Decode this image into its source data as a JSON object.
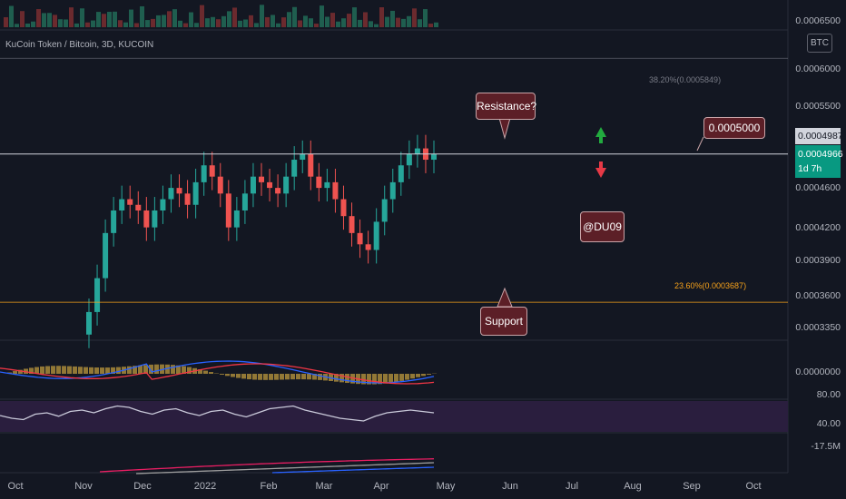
{
  "header": {
    "symbol_line": "KuCoin Token / Bitcoin, 3D, KUCOIN",
    "currency": "BTC"
  },
  "y_axis": {
    "labels": [
      "0.0006000",
      "0.0005500",
      "0.0004600",
      "0.0004200",
      "0.0003900",
      "0.0003600",
      "0.0003350"
    ],
    "top_label": "0.0006500"
  },
  "x_axis": {
    "labels": [
      "Oct",
      "Nov",
      "Dec",
      "2022",
      "Feb",
      "Mar",
      "Apr",
      "May",
      "Jun",
      "Jul",
      "Aug",
      "Sep",
      "Oct"
    ]
  },
  "price_tags": {
    "last_close": "0.0004987",
    "current": "0.0004966",
    "countdown": "1d 7h"
  },
  "annotations": {
    "resistance": "Resistance?",
    "support": "Support",
    "author": "@DU09",
    "level": "0.0005000",
    "fib_38": "38.20%(0.0005849)",
    "fib_23": "23.60%(0.0003687)"
  },
  "indicators": {
    "macd_zero": "0.0000000",
    "rsi_upper": "80.00",
    "rsi_lower": "40.00",
    "volume_osc": "-17.5M"
  },
  "colors": {
    "background": "#131722",
    "up": "#26a69a",
    "down": "#ef5350",
    "resistance_line": "#d1d4dc",
    "fib_38": "#787b86",
    "fib_23": "#f7a21b",
    "macd": "#2962ff",
    "signal": "#f23645",
    "rsi": "#c9c9d9",
    "rsi_band": "#2a1e3e",
    "callout_bg": "#5c1f27"
  },
  "chart_data": {
    "type": "candlestick",
    "title": "KuCoin Token / Bitcoin, 3D, KUCOIN",
    "xlabel": "",
    "ylabel": "BTC",
    "ylim": [
      0.000335,
      0.00061
    ],
    "resistance": 0.0005,
    "fib_levels": [
      {
        "label": "38.20%",
        "value": 0.0005849
      },
      {
        "label": "23.60%",
        "value": 0.0003687
      }
    ],
    "candles": [
      [
        0.00034,
        0.00036
      ],
      [
        0.00036,
        0.00039
      ],
      [
        0.00039,
        0.00043
      ],
      [
        0.00043,
        0.00045
      ],
      [
        0.00045,
        0.00046
      ],
      [
        0.00046,
        0.000455
      ],
      [
        0.000455,
        0.00045
      ],
      [
        0.00045,
        0.000435
      ],
      [
        0.000435,
        0.00045
      ],
      [
        0.00045,
        0.00046
      ],
      [
        0.00046,
        0.00047
      ],
      [
        0.00047,
        0.000465
      ],
      [
        0.000465,
        0.000455
      ],
      [
        0.000455,
        0.000475
      ],
      [
        0.000475,
        0.00049
      ],
      [
        0.00049,
        0.00048
      ],
      [
        0.00048,
        0.000465
      ],
      [
        0.000465,
        0.000435
      ],
      [
        0.000435,
        0.00045
      ],
      [
        0.00045,
        0.000465
      ],
      [
        0.000465,
        0.00048
      ],
      [
        0.00048,
        0.000475
      ],
      [
        0.000475,
        0.00047
      ],
      [
        0.00047,
        0.000465
      ],
      [
        0.000465,
        0.00048
      ],
      [
        0.00048,
        0.000495
      ],
      [
        0.000495,
        0.0005
      ],
      [
        0.0005,
        0.00048
      ],
      [
        0.00048,
        0.00047
      ],
      [
        0.00047,
        0.000475
      ],
      [
        0.000475,
        0.00046
      ],
      [
        0.00046,
        0.000445
      ],
      [
        0.000445,
        0.00043
      ],
      [
        0.00043,
        0.00042
      ],
      [
        0.00042,
        0.000415
      ],
      [
        0.000415,
        0.00044
      ],
      [
        0.00044,
        0.00046
      ],
      [
        0.00046,
        0.000475
      ],
      [
        0.000475,
        0.00049
      ],
      [
        0.00049,
        0.0005
      ],
      [
        0.0005,
        0.000505
      ],
      [
        0.000505,
        0.000495
      ],
      [
        0.000495,
        0.0005
      ]
    ],
    "rsi": [
      56,
      52,
      50,
      58,
      60,
      55,
      62,
      64,
      60,
      66,
      70,
      68,
      62,
      58,
      64,
      66,
      60,
      56,
      62,
      64,
      58,
      54,
      60,
      66,
      68,
      70,
      64,
      60,
      56,
      52,
      50,
      48,
      55,
      60,
      62,
      64,
      62,
      60
    ]
  }
}
